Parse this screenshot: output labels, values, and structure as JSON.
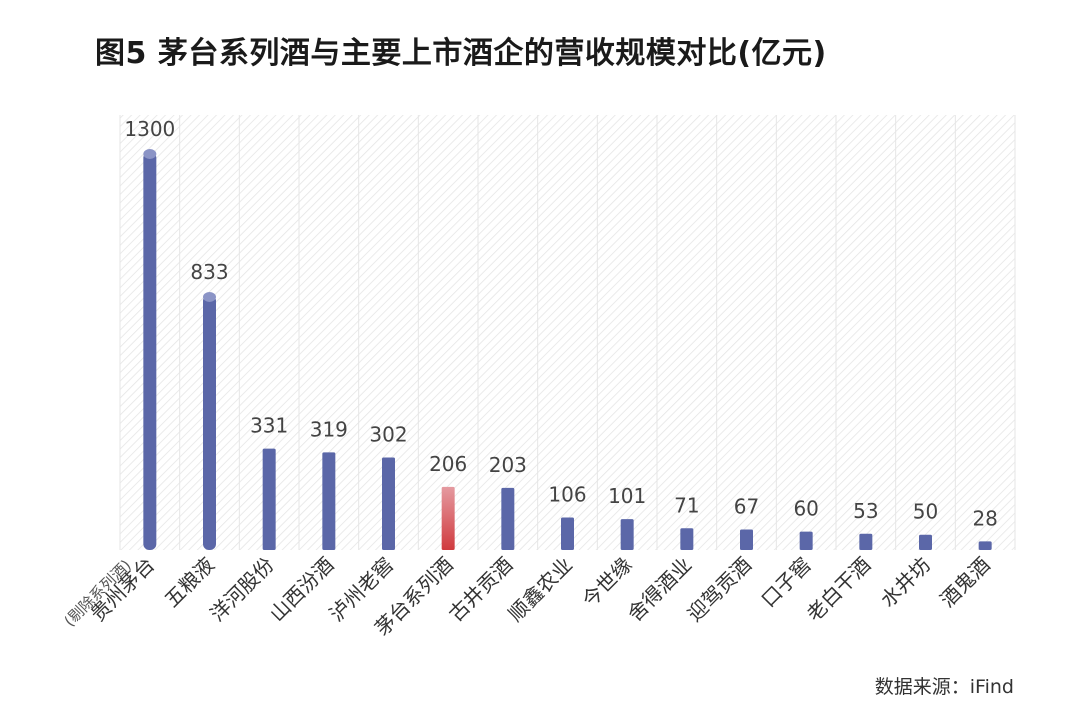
{
  "title": "图5  茅台系列酒与主要上市酒企的营收规模对比(亿元)",
  "source": "数据来源：iFind",
  "chart_data": {
    "type": "bar",
    "categories": [
      "贵州茅台",
      "五粮液",
      "洋河股份",
      "山西汾酒",
      "泸州老窖",
      "茅台系列酒",
      "古井贡酒",
      "顺鑫农业",
      "今世缘",
      "舍得酒业",
      "迎驾贡酒",
      "口子窖",
      "老白干酒",
      "水井坊",
      "酒鬼酒"
    ],
    "values": [
      1300,
      833,
      331,
      319,
      302,
      206,
      203,
      106,
      101,
      71,
      67,
      60,
      53,
      50,
      28
    ],
    "category_note": "(剔除系列酒)",
    "highlight_index": 5,
    "ylim": [
      0,
      1300
    ],
    "grid": true,
    "colors": {
      "bar": "#5b67a8",
      "highlight_top": "#e59aa0",
      "highlight_bottom": "#d03a3e"
    }
  }
}
